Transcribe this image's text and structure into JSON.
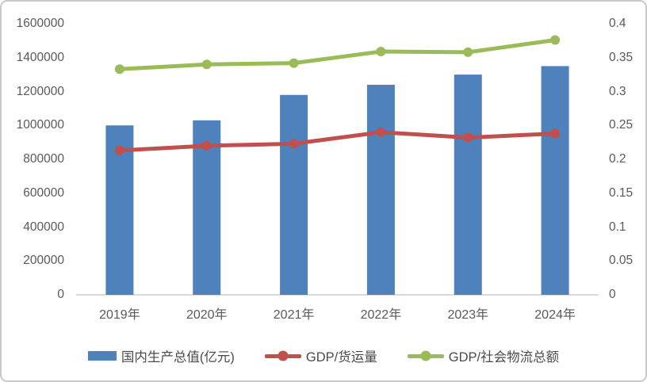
{
  "frame": {
    "background": "#ffffff",
    "border_color": "#c9c9c9"
  },
  "chart_data": {
    "type": "combo-bar-line",
    "title": "",
    "categories": [
      "2019年",
      "2020年",
      "2021年",
      "2022年",
      "2023年",
      "2024年"
    ],
    "series": [
      {
        "name": "国内生产总值(亿元)",
        "type": "bar",
        "axis": "left",
        "color": "#4f81bd",
        "values": [
          1000000,
          1030000,
          1180000,
          1240000,
          1300000,
          1350000
        ]
      },
      {
        "name": "GDP/货运量",
        "type": "line",
        "axis": "right",
        "color": "#c0504d",
        "values": [
          0.213,
          0.22,
          0.223,
          0.24,
          0.232,
          0.238
        ]
      },
      {
        "name": "GDP/社会物流总额",
        "type": "line",
        "axis": "right",
        "color": "#9bbb59",
        "values": [
          0.333,
          0.34,
          0.342,
          0.359,
          0.358,
          0.376
        ]
      }
    ],
    "left_axis": {
      "min": 0,
      "max": 1600000,
      "ticks": [
        "0",
        "200000",
        "400000",
        "600000",
        "800000",
        "1000000",
        "1200000",
        "1400000",
        "1600000"
      ]
    },
    "right_axis": {
      "min": 0,
      "max": 0.4,
      "ticks": [
        "0",
        "0.05",
        "0.1",
        "0.15",
        "0.2",
        "0.25",
        "0.3",
        "0.35",
        "0.4"
      ]
    },
    "grid": false,
    "legend_position": "bottom",
    "axis_line_color": "#d9d9d9",
    "tick_text_color": "#595959"
  }
}
